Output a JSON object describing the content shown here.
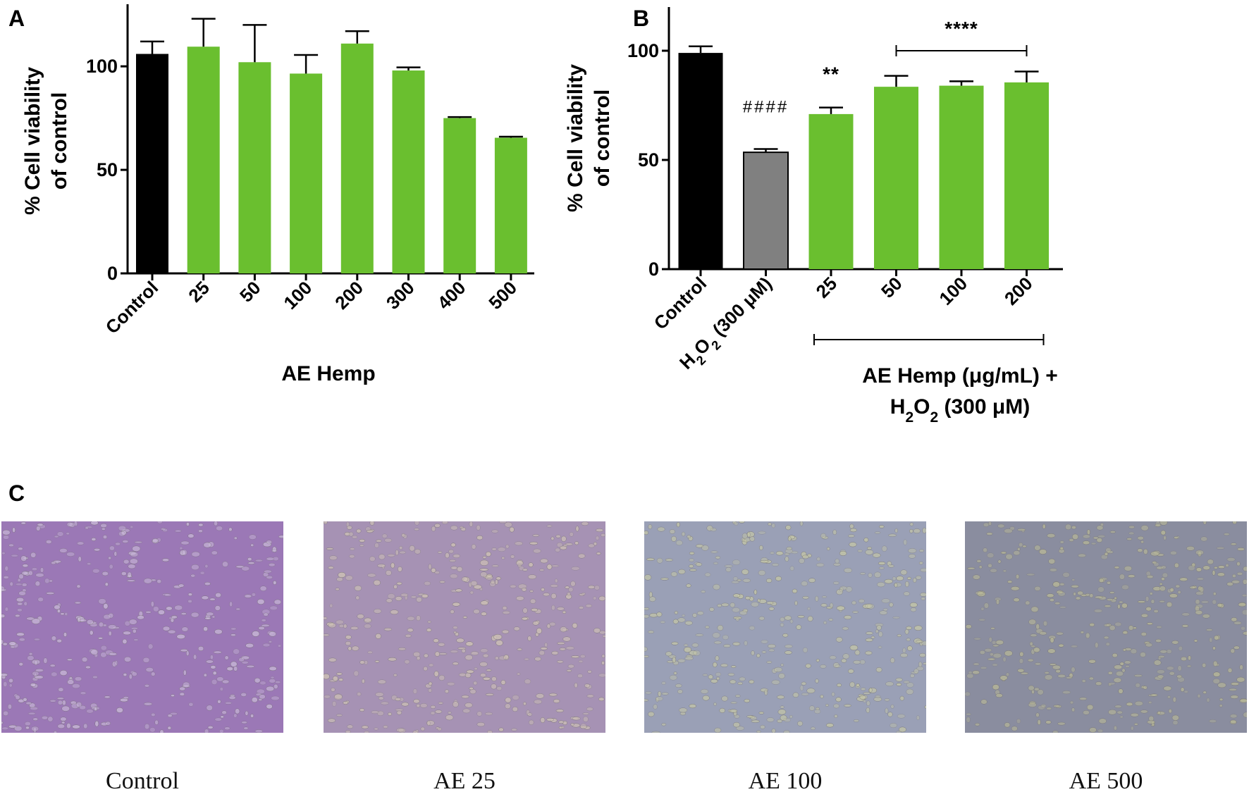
{
  "panels": {
    "a": {
      "letter": "A"
    },
    "b": {
      "letter": "B"
    },
    "c": {
      "letter": "C"
    }
  },
  "chart_data": [
    {
      "panel": "A",
      "type": "bar",
      "title": "",
      "ylabel": "% Cell viability of control",
      "ylabel_lines": [
        "% Cell viability",
        "of control"
      ],
      "xlabel": "AE Hemp",
      "ylim": [
        0,
        130
      ],
      "yticks": [
        0,
        50,
        100
      ],
      "grid": false,
      "categories": [
        "Control",
        "25",
        "50",
        "100",
        "200",
        "300",
        "400",
        "500"
      ],
      "values": [
        106,
        109.5,
        102,
        96.5,
        111,
        98,
        75,
        65.5
      ],
      "errors": [
        6,
        13.5,
        18,
        9,
        6,
        1.5,
        0.5,
        0.5
      ],
      "bar_colors": [
        "#000000",
        "#6abf2f",
        "#6abf2f",
        "#6abf2f",
        "#6abf2f",
        "#6abf2f",
        "#6abf2f",
        "#6abf2f"
      ]
    },
    {
      "panel": "B",
      "type": "bar",
      "title": "",
      "ylabel": "% Cell viability of control",
      "ylabel_lines": [
        "% Cell viability",
        "of control"
      ],
      "xlabel": "AE Hemp (μg/mL) + H₂O₂ (300 μM)",
      "xlabel_lines": [
        "AE Hemp (μg/mL) +",
        "H₂O₂ (300 μM)"
      ],
      "ylim": [
        0,
        120
      ],
      "yticks": [
        0,
        50,
        100
      ],
      "grid": false,
      "categories": [
        "Control",
        "H₂O₂ (300 μM)",
        "25",
        "50",
        "100",
        "200"
      ],
      "values": [
        99,
        53.5,
        71,
        83.5,
        84,
        85.5
      ],
      "errors": [
        3,
        1.5,
        3,
        5,
        2,
        5
      ],
      "bar_colors": [
        "#000000",
        "#808080",
        "#6abf2f",
        "#6abf2f",
        "#6abf2f",
        "#6abf2f"
      ],
      "annotations": [
        {
          "text": "####",
          "category": "H₂O₂ (300 μM)"
        },
        {
          "text": "**",
          "category": "25"
        },
        {
          "text": "****",
          "from": "50",
          "to": "200"
        }
      ]
    }
  ],
  "micrographs": [
    {
      "caption": "Control",
      "tint": "#9b78b6",
      "cell_color": "#c9b9d8"
    },
    {
      "caption": "AE 25",
      "tint": "#a692b4",
      "cell_color": "#cfc3b6"
    },
    {
      "caption": "AE 100",
      "tint": "#9aa0b6",
      "cell_color": "#c4c6a8"
    },
    {
      "caption": "AE 500",
      "tint": "#8a8d9f",
      "cell_color": "#b8b898"
    }
  ],
  "colors": {
    "green": "#6abf2f",
    "gray": "#808080",
    "black": "#000000"
  }
}
